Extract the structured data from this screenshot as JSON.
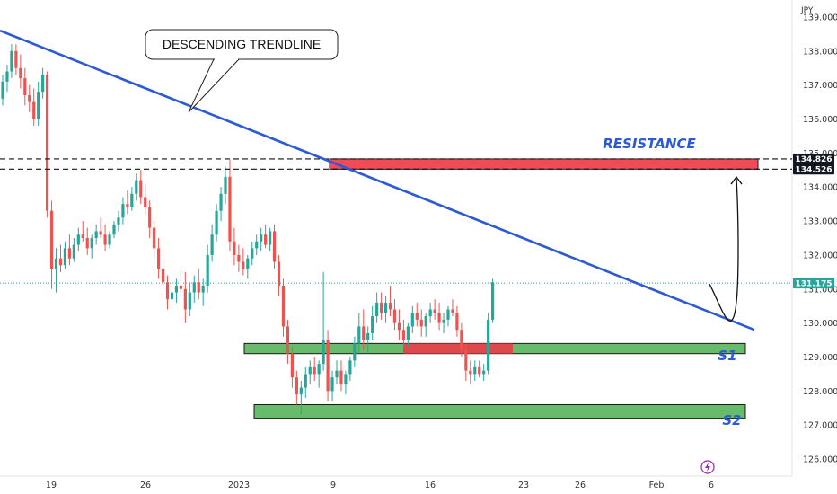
{
  "chart_data": {
    "type": "candlestick",
    "currency": "JPY",
    "y_axis": {
      "min": 125.5,
      "max": 139.5,
      "ticks": [
        139.0,
        138.0,
        137.0,
        136.0,
        135.0,
        134.0,
        133.0,
        132.0,
        131.0,
        130.0,
        129.0,
        128.0,
        127.0,
        126.0
      ],
      "tick_labels": [
        "139.000",
        "138.000",
        "137.000",
        "136.000",
        "135.000",
        "134.000",
        "133.000",
        "132.000",
        "131.000",
        "130.000",
        "129.000",
        "128.000",
        "127.000",
        "126.000"
      ]
    },
    "x_axis": {
      "tick_labels": [
        "19",
        "26",
        "2023",
        "9",
        "16",
        "23",
        "26",
        "Feb",
        "6"
      ],
      "tick_positions": [
        4,
        26,
        48,
        74,
        96,
        118,
        134,
        150,
        160
      ]
    },
    "price_tags": [
      {
        "value": 134.826,
        "label": "134.826",
        "color": "#131722"
      },
      {
        "value": 134.526,
        "label": "134.526",
        "color": "#131722"
      },
      {
        "value": 131.175,
        "label": "131.175",
        "color": "#26a69a"
      }
    ],
    "current_price_line": 131.175,
    "dashed_levels": [
      134.826,
      134.526
    ],
    "resistance_zone": {
      "low": 134.526,
      "high": 134.826,
      "x_start": 73,
      "x_end": 170,
      "label": "RESISTANCE"
    },
    "support_zones": [
      {
        "low": 129.1,
        "high": 129.4,
        "x_start": 54,
        "x_end": 168,
        "label": "S1"
      },
      {
        "low": 127.2,
        "high": 127.6,
        "x_start": 56,
        "x_end": 168,
        "label": "S2"
      }
    ],
    "flip_zone": {
      "low": 129.1,
      "high": 129.4,
      "x_start": 89,
      "x_end": 114
    },
    "trendline": {
      "x1": 0,
      "y1": 138.6,
      "x2": 170,
      "y2": 129.8,
      "label": "DESCENDING TRENDLINE"
    },
    "projection_arrow": {
      "from": [
        158,
        131.2
      ],
      "to": [
        165,
        134.4
      ]
    },
    "candles": [
      [
        136.6,
        137.3,
        136.4,
        137.1
      ],
      [
        137.1,
        137.6,
        136.8,
        137.4
      ],
      [
        137.4,
        138.2,
        137.2,
        138.0
      ],
      [
        138.0,
        138.2,
        137.3,
        137.5
      ],
      [
        137.5,
        137.9,
        136.9,
        137.2
      ],
      [
        137.2,
        137.5,
        136.4,
        136.7
      ],
      [
        136.7,
        137.0,
        136.2,
        136.5
      ],
      [
        136.5,
        136.9,
        135.8,
        136.0
      ],
      [
        136.0,
        137.1,
        135.8,
        136.8
      ],
      [
        136.8,
        137.5,
        136.6,
        137.3
      ],
      [
        137.3,
        137.4,
        133.1,
        133.3
      ],
      [
        133.3,
        133.6,
        131.0,
        131.6
      ],
      [
        131.6,
        132.2,
        130.9,
        131.9
      ],
      [
        131.9,
        132.3,
        131.5,
        131.7
      ],
      [
        131.7,
        132.4,
        131.6,
        132.2
      ],
      [
        132.2,
        132.6,
        131.7,
        131.9
      ],
      [
        131.9,
        132.5,
        131.8,
        132.3
      ],
      [
        132.3,
        132.8,
        132.1,
        132.6
      ],
      [
        132.6,
        133.0,
        132.4,
        132.5
      ],
      [
        132.5,
        132.8,
        132.0,
        132.2
      ],
      [
        132.2,
        132.6,
        131.9,
        132.5
      ],
      [
        132.5,
        132.9,
        132.3,
        132.7
      ],
      [
        132.7,
        133.1,
        132.5,
        132.6
      ],
      [
        132.6,
        132.9,
        132.1,
        132.3
      ],
      [
        132.3,
        132.7,
        132.2,
        132.6
      ],
      [
        132.6,
        133.0,
        132.5,
        132.9
      ],
      [
        132.9,
        133.3,
        132.7,
        133.1
      ],
      [
        133.1,
        133.7,
        132.9,
        133.5
      ],
      [
        133.5,
        133.9,
        133.2,
        133.4
      ],
      [
        133.4,
        134.0,
        133.3,
        133.8
      ],
      [
        133.8,
        134.4,
        133.6,
        134.2
      ],
      [
        134.2,
        134.5,
        133.5,
        133.7
      ],
      [
        133.7,
        134.1,
        133.2,
        133.4
      ],
      [
        133.4,
        133.6,
        132.5,
        132.8
      ],
      [
        132.8,
        133.0,
        131.9,
        132.2
      ],
      [
        132.2,
        132.5,
        131.3,
        131.6
      ],
      [
        131.6,
        131.9,
        131.0,
        131.2
      ],
      [
        131.2,
        131.4,
        130.4,
        130.7
      ],
      [
        130.7,
        131.1,
        130.2,
        130.9
      ],
      [
        130.9,
        131.3,
        130.6,
        131.1
      ],
      [
        131.1,
        131.6,
        130.8,
        131.0
      ],
      [
        131.0,
        131.5,
        130.0,
        130.4
      ],
      [
        130.4,
        131.2,
        130.2,
        130.9
      ],
      [
        130.9,
        131.4,
        130.6,
        131.2
      ],
      [
        131.2,
        131.6,
        130.7,
        130.9
      ],
      [
        130.9,
        131.3,
        130.5,
        131.1
      ],
      [
        131.1,
        132.3,
        130.9,
        132.0
      ],
      [
        132.0,
        132.9,
        131.8,
        132.6
      ],
      [
        132.6,
        133.5,
        132.4,
        133.3
      ],
      [
        133.3,
        134.0,
        133.0,
        133.8
      ],
      [
        133.8,
        134.6,
        133.5,
        134.3
      ],
      [
        134.3,
        134.8,
        132.1,
        132.4
      ],
      [
        132.4,
        132.8,
        131.7,
        132.0
      ],
      [
        132.0,
        132.3,
        131.5,
        131.8
      ],
      [
        131.8,
        132.2,
        131.4,
        131.6
      ],
      [
        131.6,
        132.0,
        131.3,
        131.9
      ],
      [
        131.9,
        132.4,
        131.7,
        132.2
      ],
      [
        132.2,
        132.6,
        132.0,
        132.4
      ],
      [
        132.4,
        132.8,
        132.1,
        132.6
      ],
      [
        132.6,
        132.9,
        132.2,
        132.3
      ],
      [
        132.3,
        132.8,
        132.1,
        132.7
      ],
      [
        132.7,
        132.9,
        131.6,
        131.8
      ],
      [
        131.8,
        132.0,
        130.8,
        131.1
      ],
      [
        131.1,
        131.3,
        129.6,
        129.9
      ],
      [
        129.9,
        130.1,
        128.8,
        129.1
      ],
      [
        129.1,
        129.3,
        128.1,
        128.4
      ],
      [
        128.4,
        128.6,
        127.6,
        127.9
      ],
      [
        127.9,
        128.3,
        127.3,
        128.1
      ],
      [
        128.1,
        128.7,
        127.8,
        128.5
      ],
      [
        128.5,
        128.9,
        128.2,
        128.7
      ],
      [
        128.7,
        129.0,
        128.3,
        128.5
      ],
      [
        128.5,
        128.9,
        128.1,
        128.8
      ],
      [
        128.8,
        131.5,
        128.6,
        129.5
      ],
      [
        129.5,
        129.8,
        127.7,
        128.0
      ],
      [
        128.0,
        128.6,
        127.7,
        128.4
      ],
      [
        128.4,
        128.9,
        128.2,
        128.6
      ],
      [
        128.6,
        128.9,
        128.0,
        128.2
      ],
      [
        128.2,
        128.6,
        127.9,
        128.5
      ],
      [
        128.5,
        129.0,
        128.3,
        128.9
      ],
      [
        128.9,
        129.6,
        128.7,
        129.4
      ],
      [
        129.4,
        130.3,
        129.1,
        129.9
      ],
      [
        129.9,
        130.4,
        129.2,
        129.5
      ],
      [
        129.5,
        129.9,
        129.1,
        129.7
      ],
      [
        129.7,
        130.5,
        129.5,
        130.2
      ],
      [
        130.2,
        130.9,
        130.0,
        130.6
      ],
      [
        130.6,
        130.9,
        130.1,
        130.3
      ],
      [
        130.3,
        130.8,
        130.0,
        130.6
      ],
      [
        130.6,
        131.1,
        130.2,
        130.4
      ],
      [
        130.4,
        130.7,
        129.8,
        130.0
      ],
      [
        130.0,
        130.4,
        129.5,
        129.8
      ],
      [
        129.8,
        130.1,
        129.3,
        129.5
      ],
      [
        129.5,
        130.0,
        129.3,
        129.9
      ],
      [
        129.9,
        130.5,
        129.7,
        130.3
      ],
      [
        130.3,
        130.6,
        129.9,
        130.1
      ],
      [
        130.1,
        130.4,
        129.6,
        129.9
      ],
      [
        129.9,
        130.3,
        129.6,
        130.2
      ],
      [
        130.2,
        130.6,
        130.0,
        130.4
      ],
      [
        130.4,
        130.7,
        130.1,
        130.3
      ],
      [
        130.3,
        130.6,
        129.8,
        130.0
      ],
      [
        130.0,
        130.3,
        129.7,
        130.1
      ],
      [
        130.1,
        130.5,
        129.9,
        130.4
      ],
      [
        130.4,
        130.7,
        130.2,
        130.3
      ],
      [
        130.3,
        130.5,
        129.6,
        129.8
      ],
      [
        129.8,
        130.0,
        129.0,
        129.2
      ],
      [
        129.2,
        129.4,
        128.3,
        128.6
      ],
      [
        128.6,
        128.9,
        128.2,
        128.5
      ],
      [
        128.5,
        128.9,
        128.3,
        128.7
      ],
      [
        128.7,
        128.9,
        128.4,
        128.5
      ],
      [
        128.5,
        128.8,
        128.3,
        128.6
      ],
      [
        128.6,
        130.3,
        128.5,
        130.1
      ],
      [
        130.1,
        131.3,
        130.0,
        131.2
      ]
    ]
  },
  "annotations": {
    "trendline_callout": "DESCENDING TRENDLINE",
    "resistance_label": "RESISTANCE",
    "s1_label": "S1",
    "s2_label": "S2"
  },
  "colors": {
    "bull": "#26a69a",
    "bear": "#ef5350",
    "trendline": "#2c5ad6",
    "resistance_fill": "#f23645",
    "support_fill": "#4caf50",
    "flip_fill": "#f23645"
  }
}
